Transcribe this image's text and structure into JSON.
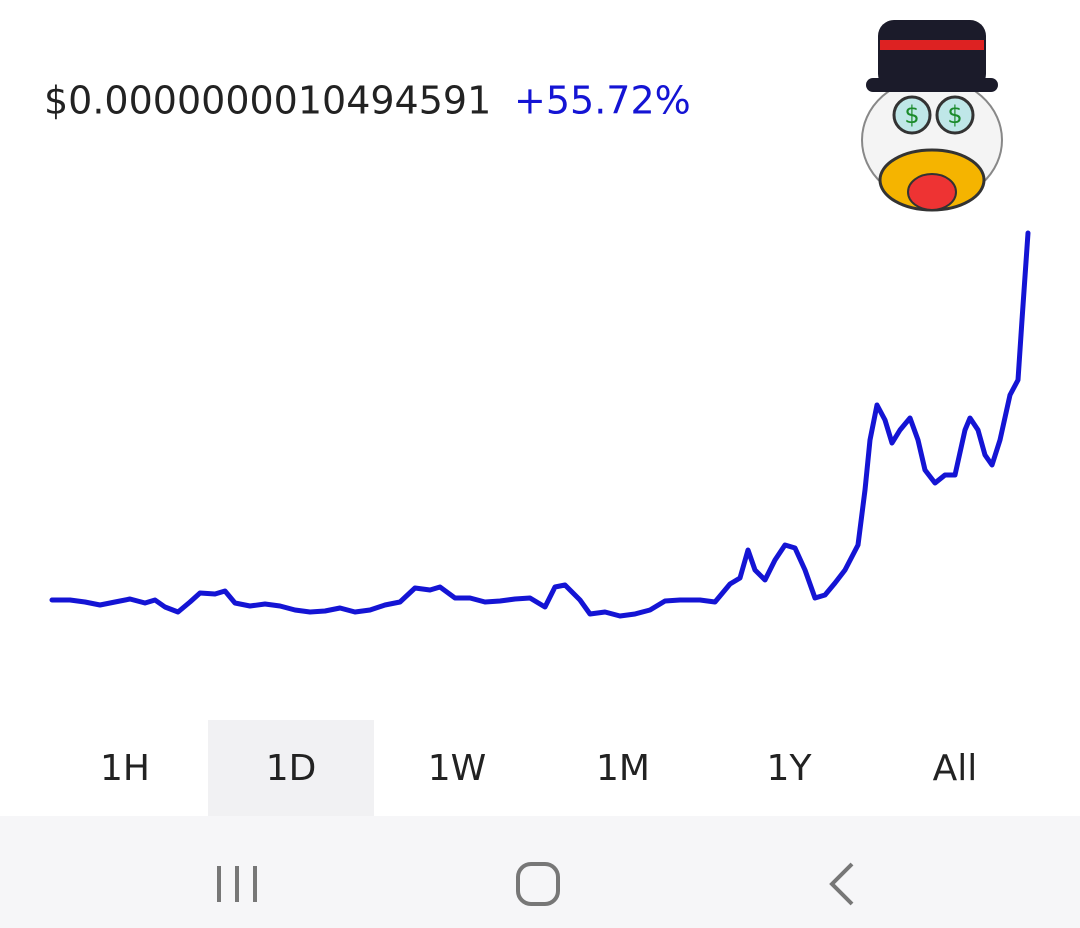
{
  "header": {
    "price": "$0.0000000010494591",
    "change": "+55.72%"
  },
  "chart_data": {
    "type": "line",
    "color": "#1414d4",
    "x": [
      0,
      18,
      33,
      48,
      63,
      78,
      93,
      103,
      113,
      126,
      138,
      148,
      163,
      173,
      183,
      198,
      213,
      228,
      243,
      258,
      273,
      288,
      303,
      318,
      333,
      348,
      363,
      378,
      388,
      403,
      418,
      433,
      448,
      463,
      478,
      493,
      503,
      513,
      528,
      538,
      553,
      568,
      583,
      598,
      613,
      628,
      648,
      663,
      678,
      688,
      696,
      703,
      713,
      723,
      733,
      743,
      753,
      763,
      773,
      783,
      793,
      806,
      813,
      818,
      825,
      833,
      840,
      848,
      858,
      866,
      873,
      883,
      893,
      903,
      913,
      918,
      926,
      933,
      940,
      948,
      958,
      966,
      970,
      976
    ],
    "values": [
      20,
      20,
      19.6,
      19,
      19.6,
      20.2,
      19.4,
      20,
      18.6,
      17.6,
      19.6,
      21.4,
      21.2,
      21.8,
      19.4,
      18.8,
      19.2,
      18.8,
      18,
      17.6,
      17.8,
      18.4,
      17.6,
      18,
      19,
      19.6,
      22.4,
      22,
      22.6,
      20.4,
      20.4,
      19.6,
      19.8,
      20.2,
      20.4,
      18.6,
      22.6,
      23,
      20,
      17.2,
      17.6,
      16.8,
      17.2,
      18,
      19.8,
      20,
      20,
      19.6,
      23.2,
      24.4,
      30,
      26,
      24,
      28,
      31,
      30.4,
      26,
      20.4,
      21,
      23.4,
      26,
      31,
      42,
      52,
      59,
      56,
      51.4,
      54,
      56.4,
      52,
      46,
      43.4,
      45,
      45,
      54,
      56.4,
      54,
      49,
      47,
      52,
      61,
      64,
      76,
      93.4
    ],
    "xlim": [
      0,
      976
    ],
    "ylim": [
      0,
      100
    ]
  },
  "ranges": [
    "1H",
    "1D",
    "1W",
    "1M",
    "1Y",
    "All"
  ],
  "selected_range": 1
}
